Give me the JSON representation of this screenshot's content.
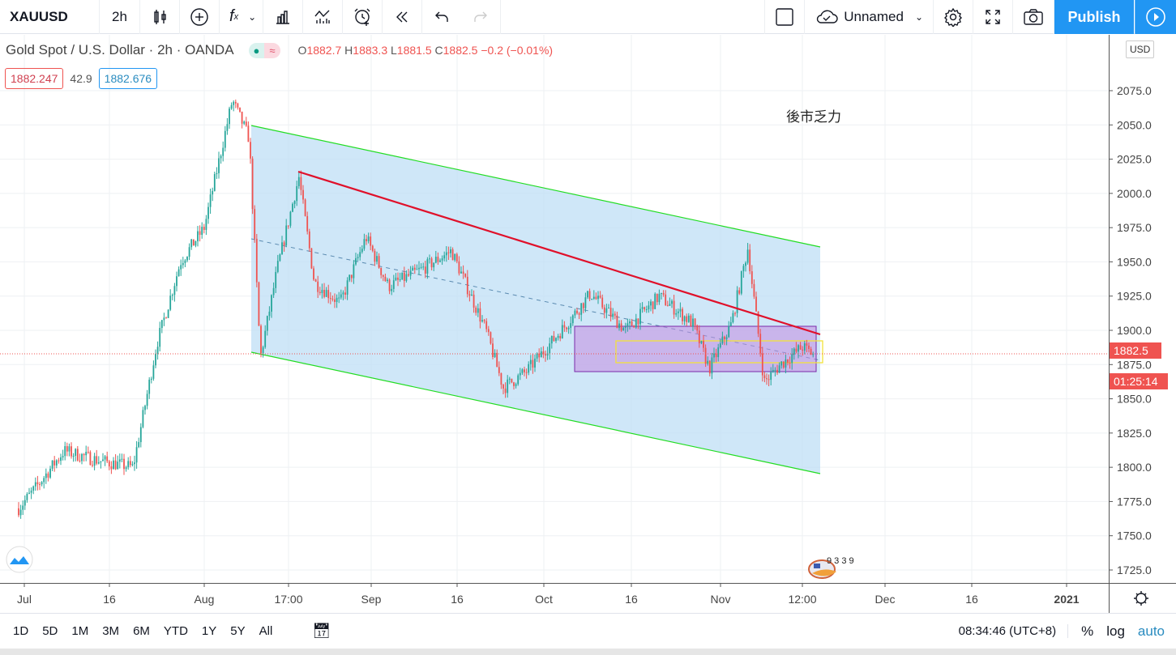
{
  "toolbar": {
    "symbol": "XAUUSD",
    "interval": "2h",
    "layout_name": "Unnamed",
    "publish": "Publish",
    "icons": [
      "candles-icon",
      "add-compare-icon",
      "indicators-icon",
      "chevron-down-icon",
      "financials-icon",
      "templates-icon",
      "alert-icon",
      "replay-icon",
      "undo-icon",
      "redo-icon",
      "layout-square-icon",
      "cloud-icon",
      "gear-icon",
      "fullscreen-icon",
      "camera-icon",
      "play-icon"
    ]
  },
  "legend": {
    "title": "Gold Spot / U.S. Dollar · 2h · OANDA",
    "open_label": "O",
    "open": "1882.7",
    "high_label": "H",
    "high": "1883.3",
    "low_label": "L",
    "low": "1881.5",
    "close_label": "C",
    "close": "1882.5",
    "change": "−0.2 (−0.01%)",
    "bid": "1882.247",
    "spread": "42.9",
    "ask": "1882.676"
  },
  "annotation": "後市乏力",
  "logo_text": "9 3 3 9",
  "price_axis": {
    "currency": "USD",
    "ticks": [
      "2075.0",
      "2050.0",
      "2025.0",
      "2000.0",
      "1975.0",
      "1950.0",
      "1925.0",
      "1900.0",
      "1875.0",
      "1850.0",
      "1825.0",
      "1800.0",
      "1775.0",
      "1750.0",
      "1725.0"
    ],
    "last_price": "1882.5",
    "countdown": "01:25:14"
  },
  "time_axis": {
    "ticks": [
      "Jul",
      "16",
      "Aug",
      "17:00",
      "Sep",
      "16",
      "Oct",
      "16",
      "Nov",
      "12:00",
      "Dec",
      "16",
      "2021"
    ]
  },
  "bottom": {
    "ranges": [
      "1D",
      "5D",
      "1M",
      "3M",
      "6M",
      "YTD",
      "1Y",
      "5Y",
      "All"
    ],
    "clock": "08:34:46 (UTC+8)",
    "percent": "%",
    "log": "log",
    "auto": "auto"
  },
  "colors": {
    "up": "#26a69a",
    "down": "#ef5350",
    "accent": "#2196f3",
    "channel": "#00e000",
    "trendline": "#e0102a"
  },
  "chart_data": {
    "type": "candlestick",
    "symbol": "XAUUSD",
    "ylim": [
      1710,
      2100
    ],
    "path": [
      [
        "2020-06-30",
        1770
      ],
      [
        "2020-07-03",
        1785
      ],
      [
        "2020-07-08",
        1812
      ],
      [
        "2020-07-14",
        1805
      ],
      [
        "2020-07-20",
        1800
      ],
      [
        "2020-07-24",
        1890
      ],
      [
        "2020-07-28",
        1950
      ],
      [
        "2020-08-01",
        1975
      ],
      [
        "2020-08-06",
        2068
      ],
      [
        "2020-08-09",
        2040
      ],
      [
        "2020-08-11",
        1880
      ],
      [
        "2020-08-14",
        1945
      ],
      [
        "2020-08-18",
        2012
      ],
      [
        "2020-08-21",
        1935
      ],
      [
        "2020-08-26",
        1920
      ],
      [
        "2020-08-31",
        1968
      ],
      [
        "2020-09-04",
        1932
      ],
      [
        "2020-09-10",
        1945
      ],
      [
        "2020-09-15",
        1958
      ],
      [
        "2020-09-21",
        1900
      ],
      [
        "2020-09-24",
        1858
      ],
      [
        "2020-09-28",
        1870
      ],
      [
        "2020-10-05",
        1905
      ],
      [
        "2020-10-09",
        1927
      ],
      [
        "2020-10-15",
        1900
      ],
      [
        "2020-10-21",
        1925
      ],
      [
        "2020-10-27",
        1905
      ],
      [
        "2020-10-30",
        1872
      ],
      [
        "2020-11-03",
        1905
      ],
      [
        "2020-11-06",
        1960
      ],
      [
        "2020-11-09",
        1862
      ],
      [
        "2020-11-12",
        1875
      ],
      [
        "2020-11-16",
        1888
      ],
      [
        "2020-11-18",
        1882.5
      ]
    ]
  }
}
